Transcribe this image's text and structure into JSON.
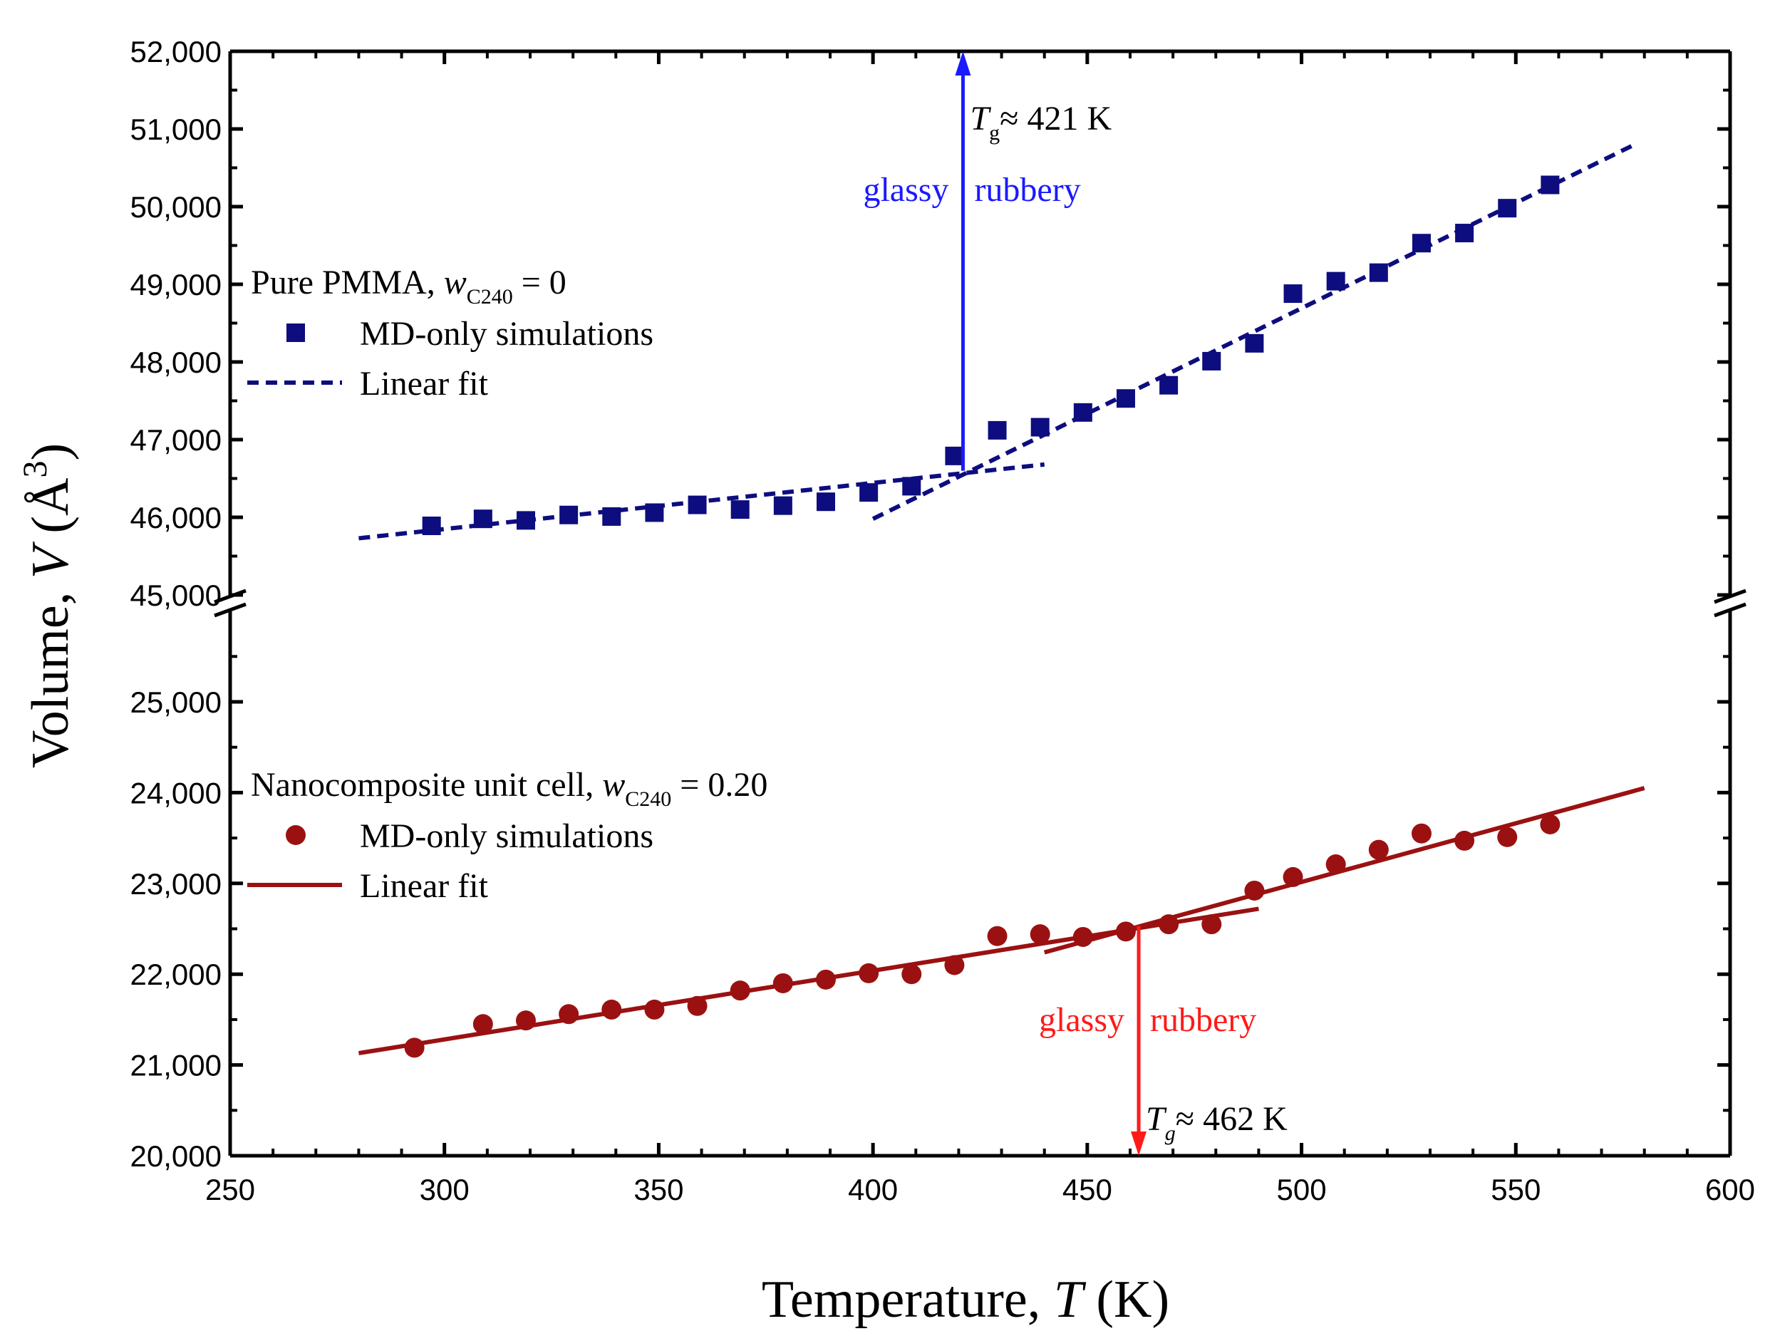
{
  "chart_data": {
    "type": "scatter",
    "xlabel": "Temperature, T (K)",
    "xlabel_parts": {
      "prefix": "Temperature, ",
      "var": "T",
      "suffix": " (K)"
    },
    "ylabel": "Volume, V (Å3)",
    "ylabel_parts": {
      "prefix": "Volume, ",
      "var": "V",
      "unit": " (Å",
      "exp": "3",
      "close": ")"
    },
    "xlim": [
      250,
      600
    ],
    "xticks": [
      250,
      300,
      350,
      400,
      450,
      500,
      550,
      600
    ],
    "x_tick_labels": [
      "250",
      "300",
      "350",
      "400",
      "450",
      "500",
      "550",
      "600"
    ],
    "y_axis_break": {
      "lower_range": [
        20000,
        26000
      ],
      "upper_range": [
        45000,
        52000
      ]
    },
    "yticks": [
      20000,
      21000,
      22000,
      23000,
      24000,
      25000,
      45000,
      46000,
      47000,
      48000,
      49000,
      50000,
      51000,
      52000
    ],
    "y_tick_labels": [
      "20,000",
      "21,000",
      "22,000",
      "23,000",
      "24,000",
      "25,000",
      "45,000",
      "46,000",
      "47,000",
      "48,000",
      "49,000",
      "50,000",
      "51,000",
      "52,000"
    ],
    "series": [
      {
        "name": "Pure PMMA, wC240 = 0 — MD-only simulations",
        "marker": "square",
        "color": "#0d0d80",
        "x": [
          297,
          309,
          319,
          329,
          339,
          349,
          359,
          369,
          379,
          389,
          399,
          409,
          419,
          429,
          439,
          449,
          459,
          469,
          479,
          489,
          498,
          508,
          518,
          528,
          538,
          548,
          558
        ],
        "y": [
          45890,
          45980,
          45960,
          46030,
          46010,
          46060,
          46160,
          46100,
          46150,
          46200,
          46320,
          46400,
          46790,
          47120,
          47160,
          47350,
          47530,
          47700,
          48010,
          48240,
          48880,
          49040,
          49150,
          49530,
          49660,
          49980,
          50280
        ]
      },
      {
        "name": "Nanocomposite unit cell, wC240 = 0.20 — MD-only simulations",
        "marker": "circle",
        "color": "#9b1111",
        "x": [
          293,
          309,
          319,
          329,
          339,
          349,
          359,
          369,
          379,
          389,
          399,
          409,
          419,
          429,
          439,
          449,
          459,
          469,
          479,
          489,
          498,
          508,
          518,
          528,
          538,
          548,
          558
        ],
        "y": [
          21190,
          21450,
          21490,
          21560,
          21610,
          21610,
          21650,
          21820,
          21900,
          21940,
          22010,
          22000,
          22100,
          22420,
          22440,
          22410,
          22470,
          22550,
          22550,
          22920,
          23070,
          23210,
          23370,
          23550,
          23470,
          23510,
          23650
        ]
      }
    ],
    "fit_lines": [
      {
        "name": "PMMA glassy fit",
        "style": "dashed",
        "color": "#0d0d80",
        "x": [
          280,
          440
        ],
        "y": [
          45730,
          46680
        ]
      },
      {
        "name": "PMMA rubbery fit",
        "style": "dashed",
        "color": "#0d0d80",
        "x": [
          400,
          577
        ],
        "y": [
          45980,
          50780
        ]
      },
      {
        "name": "Nanocomposite glassy fit",
        "style": "solid",
        "color": "#9b1111",
        "x": [
          280,
          490
        ],
        "y": [
          21130,
          22720
        ]
      },
      {
        "name": "Nanocomposite rubbery fit",
        "style": "solid",
        "color": "#9b1111",
        "x": [
          440,
          580
        ],
        "y": [
          22240,
          24050
        ]
      }
    ],
    "annotations": [
      {
        "id": "pmma_tg",
        "symbol": "T",
        "sub": "g",
        "text": "≈ 421 K",
        "x": 421,
        "y_from": 46600,
        "y_to": 52000,
        "color": "#1a1aff",
        "left": "glassy",
        "right": "rubbery"
      },
      {
        "id": "nc_tg",
        "symbol": "T",
        "sub": "g",
        "text": "≈ 462 K",
        "x": 462,
        "y_from": 22530,
        "y_to": 20000,
        "color": "#ff1a1a",
        "left": "glassy",
        "right": "rubbery"
      }
    ],
    "legends": [
      {
        "title_prefix": "Pure PMMA, ",
        "title_var": "w",
        "title_sub": "C240",
        "title_suffix": " = 0",
        "scatter_label": "MD-only simulations",
        "line_label": "Linear fit",
        "placement": "upper-left"
      },
      {
        "title_prefix": "Nanocomposite unit cell, ",
        "title_var": "w",
        "title_sub": "C240",
        "title_suffix": " = 0.20",
        "scatter_label": "MD-only simulations",
        "line_label": "Linear fit",
        "placement": "middle-left"
      }
    ]
  }
}
